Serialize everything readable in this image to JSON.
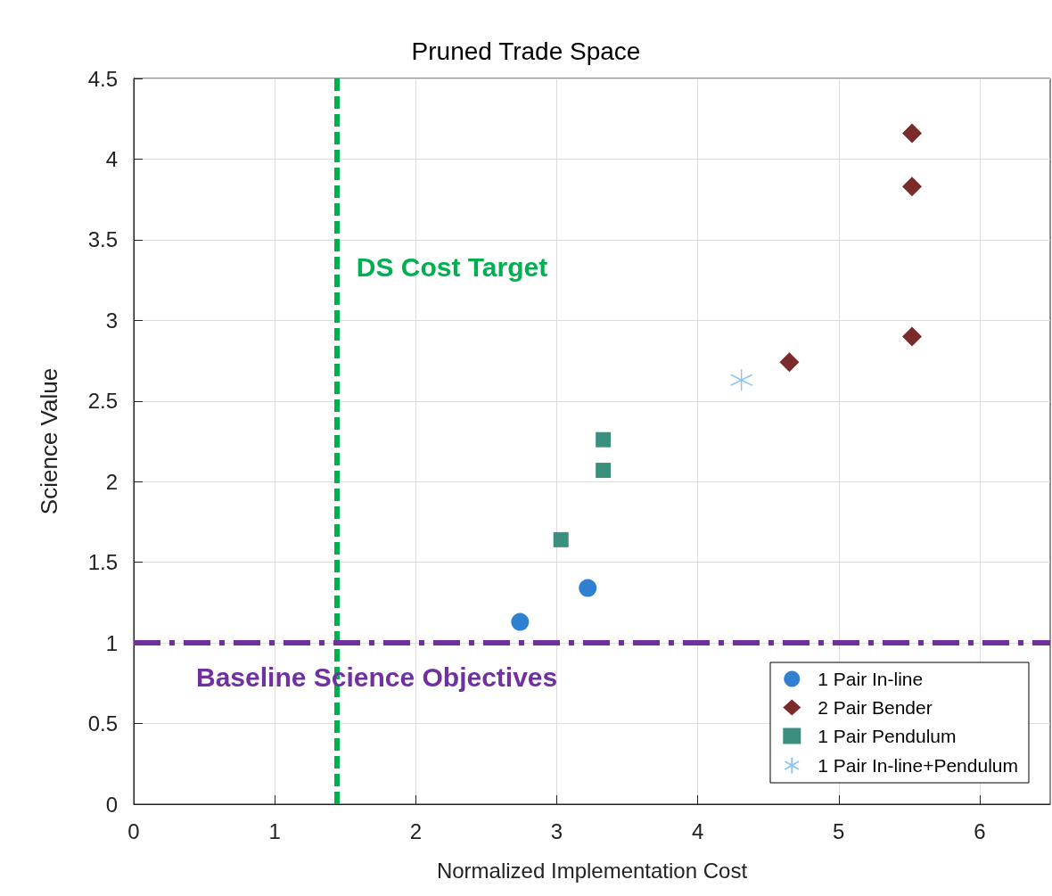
{
  "chart_data": {
    "type": "scatter",
    "title": "Pruned Trade Space",
    "xlabel": "Normalized Implementation Cost",
    "ylabel": "Science Value",
    "xlim": [
      0,
      6.5
    ],
    "xticks": [
      0,
      1,
      2,
      3,
      4,
      5,
      6
    ],
    "ylim": [
      0,
      4.5
    ],
    "yticks": [
      0,
      0.5,
      1,
      1.5,
      2,
      2.5,
      3,
      3.5,
      4,
      4.5
    ],
    "grid": true,
    "legend": "bottom right",
    "series": [
      {
        "name": "1 Pair In-line",
        "color": "#2f80d1",
        "marker": "circle",
        "x": [
          2.74,
          3.22
        ],
        "values": [
          1.13,
          1.34
        ]
      },
      {
        "name": "2 Pair Bender",
        "color": "#7b2c2a",
        "marker": "diamond",
        "x": [
          5.52,
          5.52,
          5.52,
          4.65
        ],
        "values": [
          4.16,
          3.83,
          2.9,
          2.74
        ]
      },
      {
        "name": "1 Pair Pendulum",
        "color": "#3a8f7e",
        "marker": "square",
        "x": [
          3.33,
          3.33,
          3.03
        ],
        "values": [
          2.26,
          2.07,
          1.64
        ]
      },
      {
        "name": "1 Pair In-line+Pendulum",
        "color": "#8ec6f0",
        "marker": "cross",
        "x": [
          4.31
        ],
        "values": [
          2.63
        ]
      }
    ],
    "ref_lines": [
      {
        "axis": "x",
        "value": 1.44,
        "label": "DS Cost Target",
        "color": "#00b050",
        "line_style": "dashed"
      },
      {
        "axis": "y",
        "value": 1,
        "label": "Baseline Science Objectives",
        "color": "#7030a0",
        "line_style": "dashdot"
      }
    ]
  }
}
